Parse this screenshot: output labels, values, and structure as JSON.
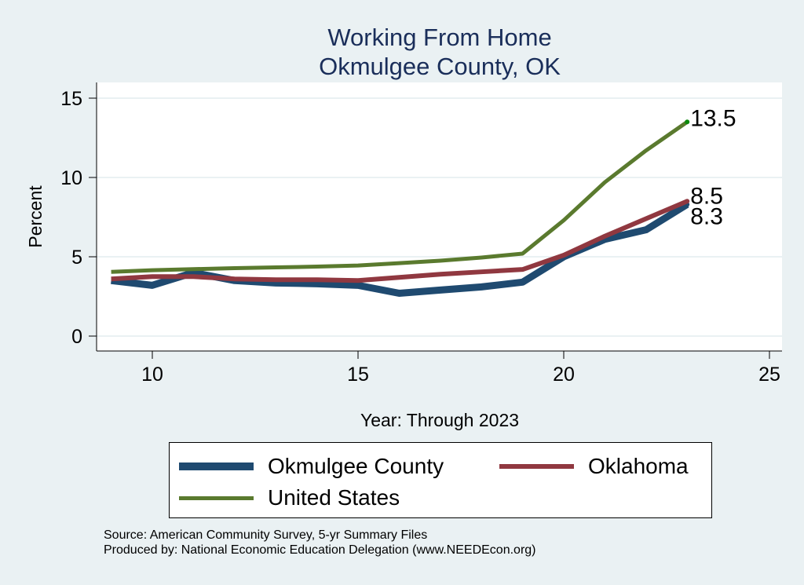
{
  "chart_data": {
    "type": "line",
    "title": "Working From Home",
    "subtitle": "Okmulgee County, OK",
    "xlabel": "Year: Through 2023",
    "ylabel": "Percent",
    "xlim": [
      8.7,
      25.3
    ],
    "ylim": [
      -0.9,
      16
    ],
    "xticks": [
      10,
      15,
      20,
      25
    ],
    "yticks": [
      0,
      5,
      10,
      15
    ],
    "grid": true,
    "x": [
      9,
      10,
      11,
      12,
      13,
      14,
      15,
      16,
      17,
      18,
      19,
      20,
      21,
      22,
      23
    ],
    "series": [
      {
        "name": "Okmulgee County",
        "color": "#1f4a70",
        "width": 9,
        "values": [
          3.5,
          3.2,
          4.0,
          3.5,
          3.35,
          3.3,
          3.2,
          2.7,
          2.9,
          3.1,
          3.4,
          5.0,
          6.1,
          6.7,
          8.3
        ],
        "end_label": "8.3"
      },
      {
        "name": "Oklahoma",
        "color": "#903840",
        "width": 6,
        "values": [
          3.6,
          3.75,
          3.75,
          3.6,
          3.55,
          3.55,
          3.5,
          3.7,
          3.9,
          4.05,
          4.2,
          5.1,
          6.3,
          7.4,
          8.5
        ],
        "end_label": "8.5"
      },
      {
        "name": "United States",
        "color": "#5a7a2e",
        "width": 5,
        "values": [
          4.05,
          4.15,
          4.22,
          4.28,
          4.33,
          4.38,
          4.45,
          4.6,
          4.75,
          4.95,
          5.2,
          7.3,
          9.7,
          11.7,
          13.5
        ],
        "end_label": "13.5"
      }
    ],
    "legend_position": "bottom"
  },
  "notes": {
    "source": "Source: American Community Survey, 5-yr Summary Files",
    "produced": "Produced by: National Economic Education Delegation (www.NEEDEcon.org)"
  }
}
